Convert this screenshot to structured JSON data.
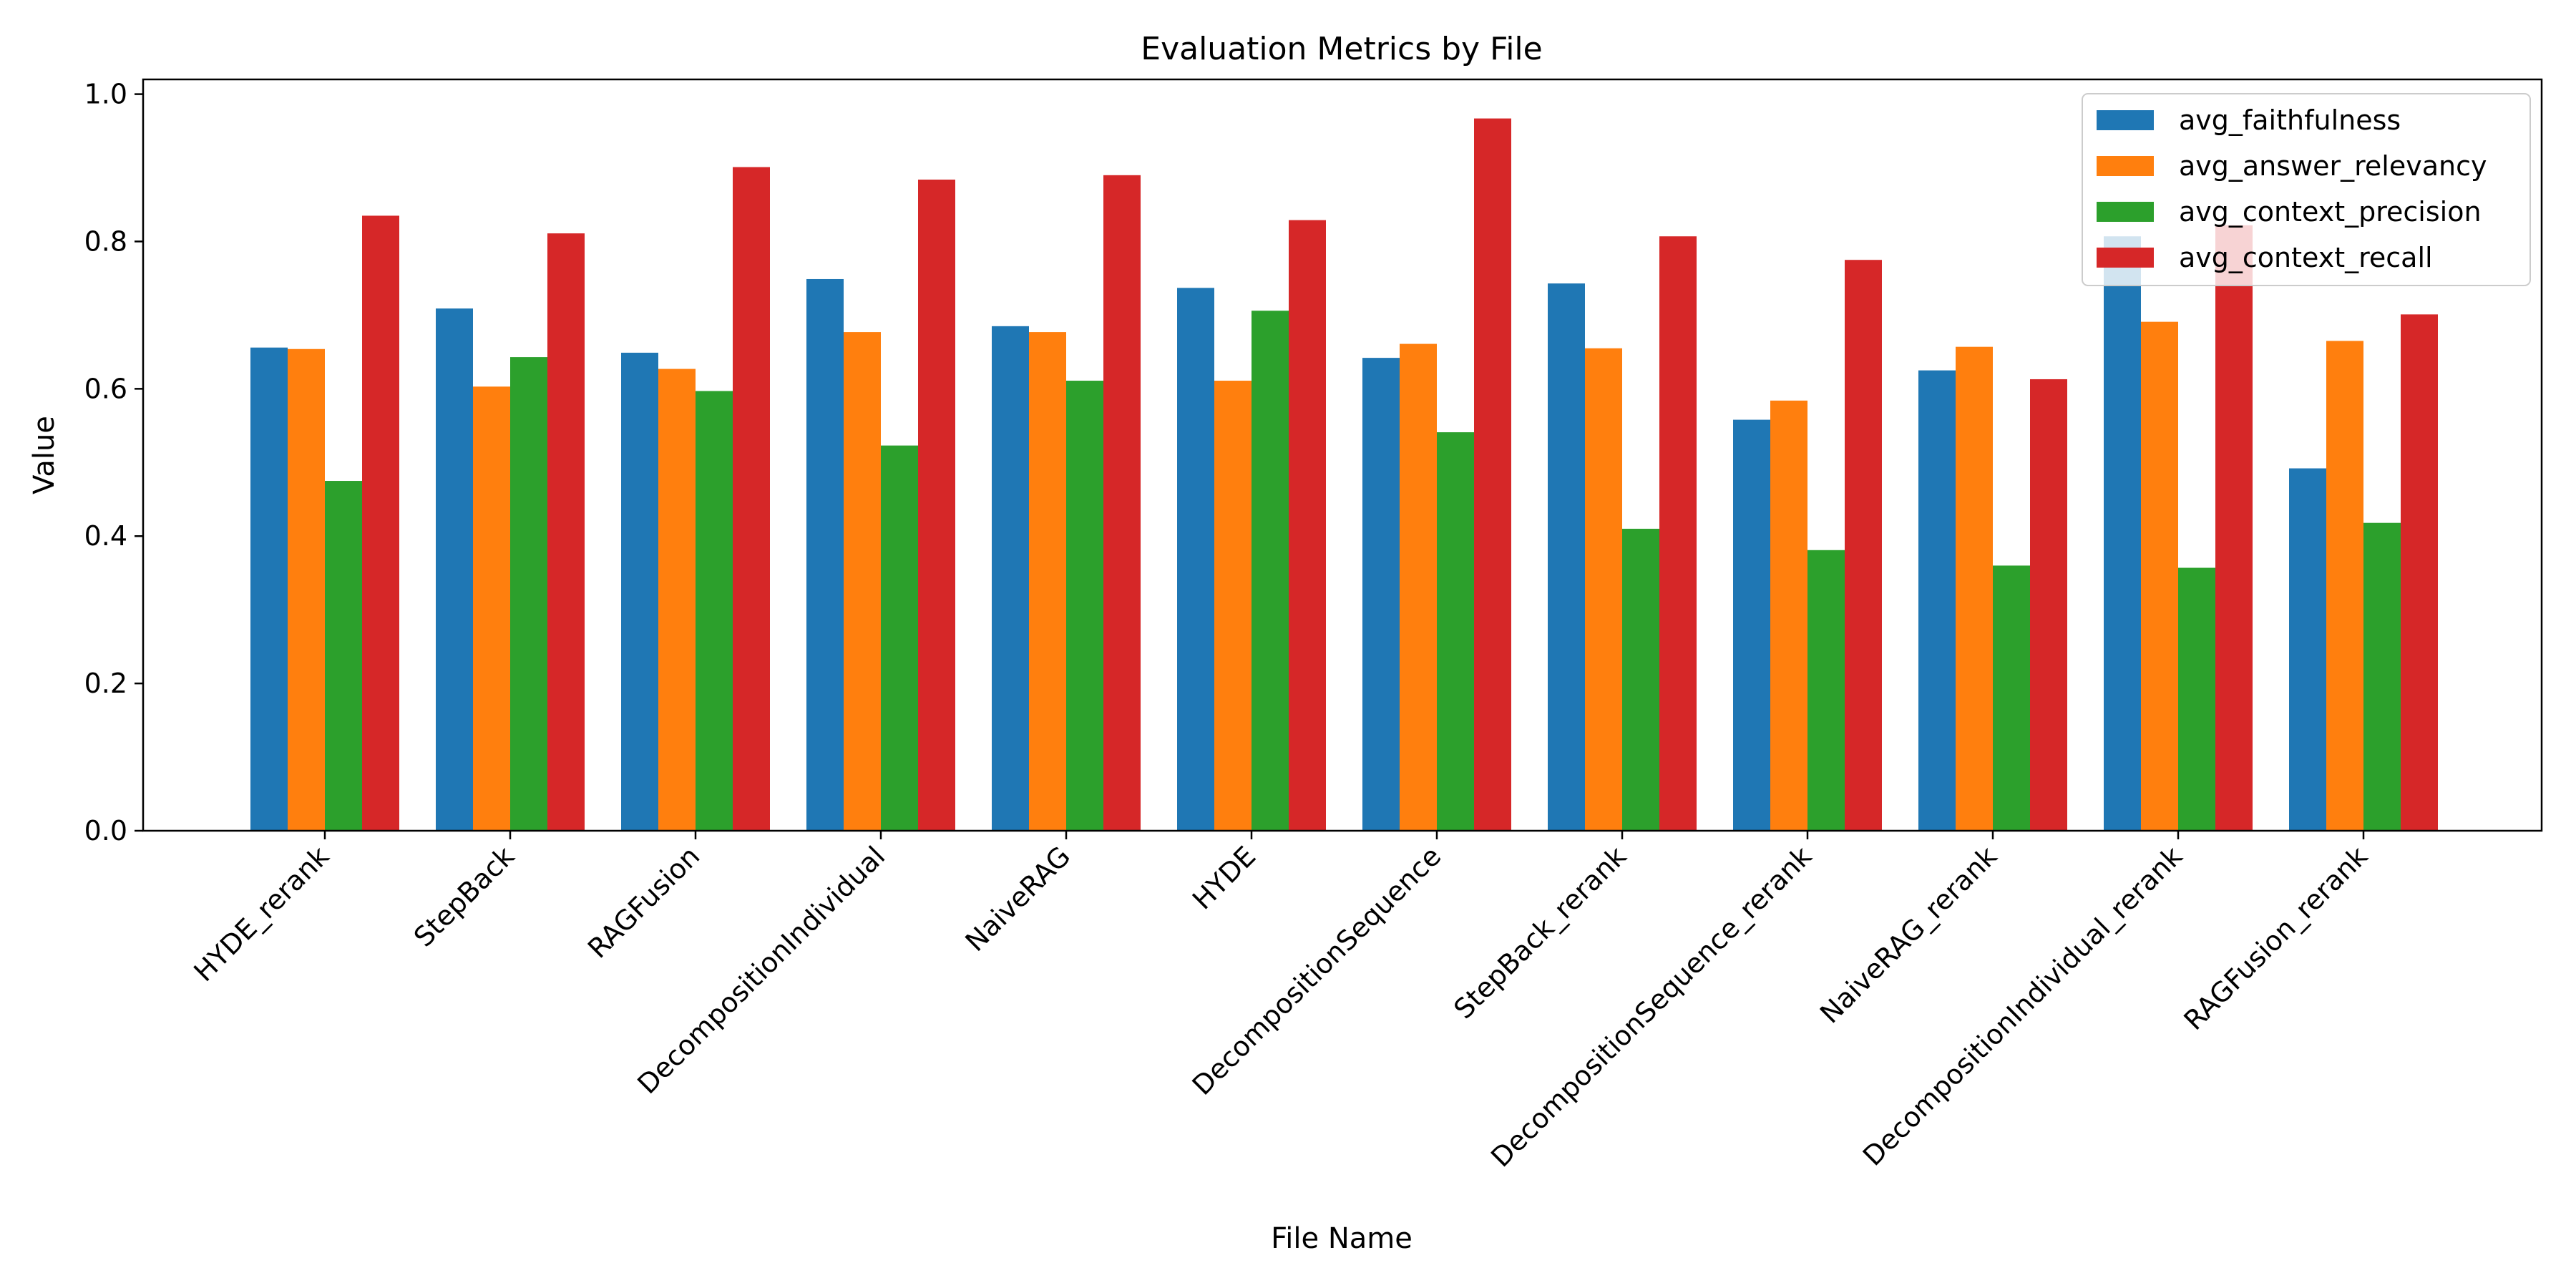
{
  "chart_data": {
    "type": "bar",
    "title": "Evaluation Metrics by File",
    "xlabel": "File Name",
    "ylabel": "Value",
    "ylim": [
      0,
      1.02
    ],
    "yticks": [
      0.0,
      0.2,
      0.4,
      0.6,
      0.8,
      1.0
    ],
    "ytick_labels": [
      "0.0",
      "0.2",
      "0.4",
      "0.6",
      "0.8",
      "1.0"
    ],
    "legend_position": "top-right",
    "grid": false,
    "categories": [
      "HYDE_rerank",
      "StepBack",
      "RAGFusion",
      "DecompositionIndividual",
      "NaiveRAG",
      "HYDE",
      "DecompositionSequence",
      "StepBack_rerank",
      "DecompositionSequence_rerank",
      "NaiveRAG_rerank",
      "DecompositionIndividual_rerank",
      "RAGFusion_rerank"
    ],
    "series": [
      {
        "name": "avg_faithfulness",
        "color": "#1f77b4",
        "values": [
          0.656,
          0.709,
          0.649,
          0.749,
          0.685,
          0.737,
          0.642,
          0.743,
          0.558,
          0.625,
          0.807,
          0.492
        ]
      },
      {
        "name": "avg_answer_relevancy",
        "color": "#ff7f0e",
        "values": [
          0.654,
          0.603,
          0.627,
          0.677,
          0.677,
          0.611,
          0.661,
          0.655,
          0.584,
          0.657,
          0.691,
          0.665
        ]
      },
      {
        "name": "avg_context_precision",
        "color": "#2ca02c",
        "values": [
          0.475,
          0.643,
          0.597,
          0.523,
          0.611,
          0.706,
          0.541,
          0.41,
          0.381,
          0.36,
          0.357,
          0.418
        ]
      },
      {
        "name": "avg_context_recall",
        "color": "#d62728",
        "values": [
          0.835,
          0.811,
          0.901,
          0.884,
          0.89,
          0.829,
          0.967,
          0.807,
          0.775,
          0.613,
          0.822,
          0.701
        ]
      }
    ]
  }
}
